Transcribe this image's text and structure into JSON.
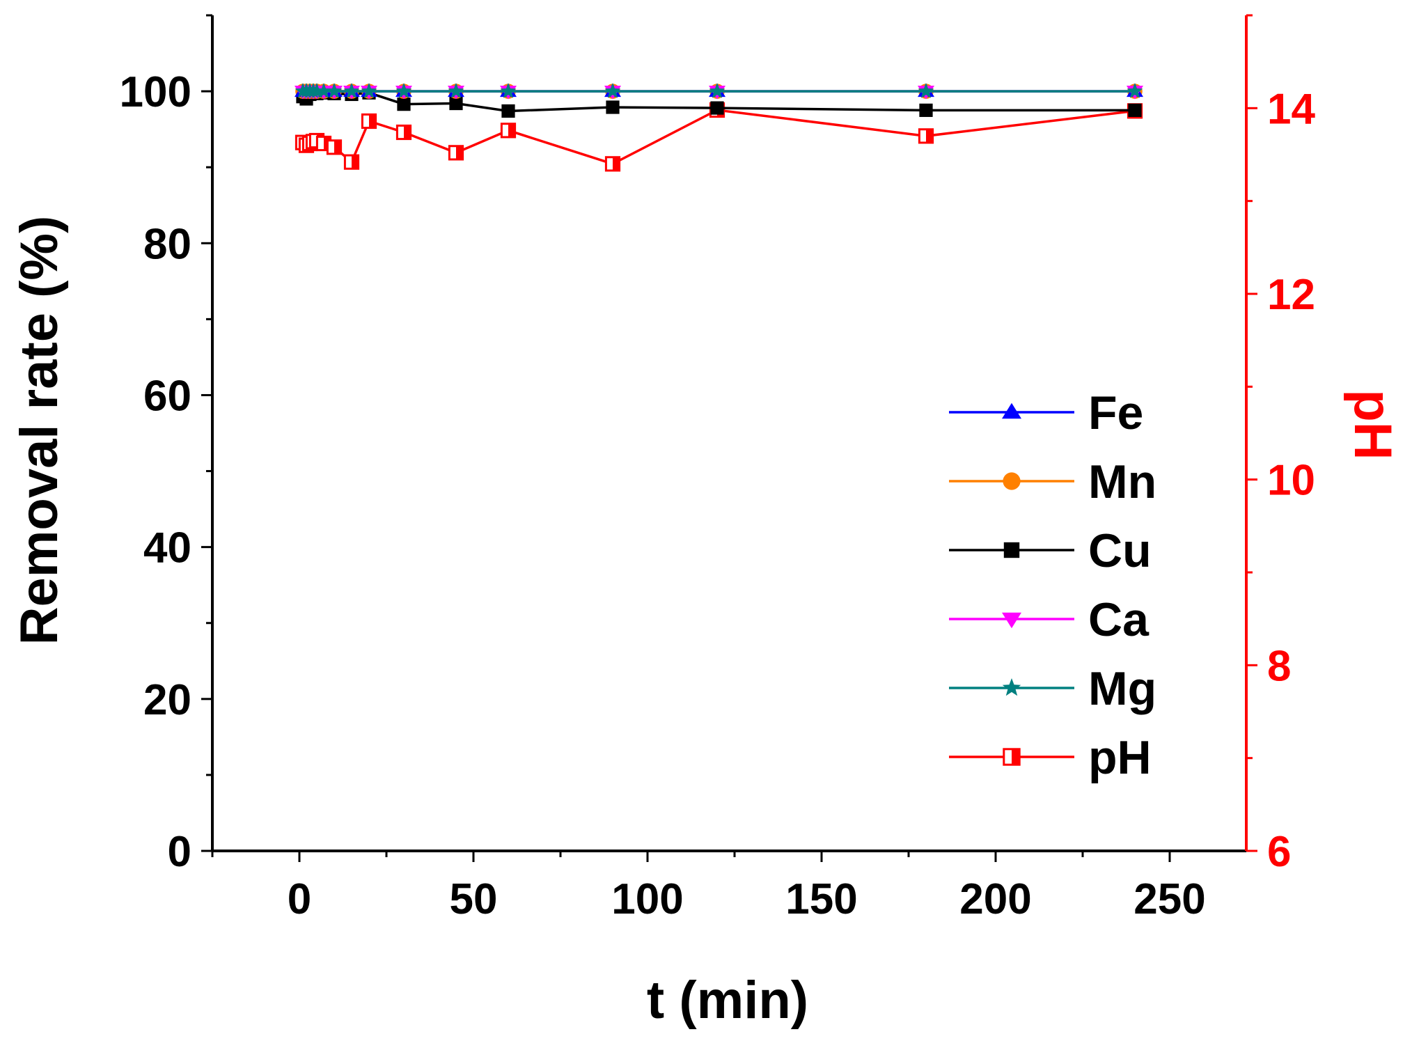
{
  "chart_data": {
    "type": "line",
    "title": "",
    "xlabel": "t (min)",
    "ylabel": "Removal rate (%)",
    "y2label": "pH",
    "xlim": [
      -25,
      272
    ],
    "ylim": [
      0,
      110
    ],
    "y2lim": [
      6,
      15
    ],
    "xticks": [
      0,
      50,
      100,
      150,
      200,
      250
    ],
    "yticks": [
      0,
      20,
      40,
      60,
      80,
      100
    ],
    "y2ticks": [
      6,
      8,
      10,
      12,
      14
    ],
    "legend_position": "center-right",
    "grid": false,
    "colors": {
      "axis": "#000000",
      "axis_right": "#ff0000"
    },
    "series": [
      {
        "name": "Fe",
        "axis": "left",
        "color": "#0000ff",
        "marker": "triangle-up",
        "fill": "solid",
        "x": [
          1,
          2,
          3,
          4,
          5,
          7,
          10,
          15,
          20,
          30,
          45,
          60,
          90,
          120,
          180,
          240
        ],
        "values": [
          100,
          100,
          100,
          100,
          100,
          100,
          100,
          100,
          100,
          100,
          100,
          100,
          100,
          100,
          100,
          100
        ]
      },
      {
        "name": "Mn",
        "axis": "left",
        "color": "#ff8000",
        "marker": "circle",
        "fill": "solid",
        "x": [
          1,
          2,
          3,
          4,
          5,
          7,
          10,
          15,
          20,
          30,
          45,
          60,
          90,
          120,
          180,
          240
        ],
        "values": [
          100,
          100,
          100,
          100,
          100,
          100,
          100,
          100,
          100,
          100,
          100,
          100,
          100,
          100,
          100,
          100
        ]
      },
      {
        "name": "Cu",
        "axis": "left",
        "color": "#000000",
        "marker": "square",
        "fill": "solid",
        "x": [
          1,
          2,
          3,
          4,
          5,
          7,
          10,
          15,
          20,
          30,
          45,
          60,
          90,
          120,
          180,
          240
        ],
        "values": [
          99.3,
          99,
          99.6,
          99.8,
          99.7,
          99.8,
          99.7,
          99.6,
          99.8,
          98.3,
          98.4,
          97.4,
          97.9,
          97.8,
          97.5,
          97.5
        ]
      },
      {
        "name": "Ca",
        "axis": "left",
        "color": "#ff00ff",
        "marker": "triangle-down",
        "fill": "solid",
        "x": [
          1,
          2,
          3,
          4,
          5,
          7,
          10,
          15,
          20,
          30,
          45,
          60,
          90,
          120,
          180,
          240
        ],
        "values": [
          100,
          100,
          100,
          100,
          100,
          100,
          100,
          100,
          100,
          100,
          100,
          100,
          100,
          100,
          100,
          100
        ]
      },
      {
        "name": "Mg",
        "axis": "left",
        "color": "#008080",
        "marker": "star",
        "fill": "solid",
        "x": [
          1,
          2,
          3,
          4,
          5,
          7,
          10,
          15,
          20,
          30,
          45,
          60,
          90,
          120,
          180,
          240
        ],
        "values": [
          100,
          100,
          100,
          100,
          100,
          100,
          100,
          100,
          100,
          100,
          100,
          100,
          100,
          100,
          100,
          100
        ]
      },
      {
        "name": "pH",
        "axis": "right",
        "color": "#ff0000",
        "marker": "square",
        "fill": "half",
        "x": [
          1,
          2,
          3,
          4,
          5,
          7,
          10,
          15,
          20,
          30,
          45,
          60,
          90,
          120,
          180,
          240
        ],
        "values": [
          13.63,
          13.6,
          13.62,
          13.64,
          13.65,
          13.62,
          13.58,
          13.42,
          13.86,
          13.74,
          13.52,
          13.76,
          13.4,
          13.98,
          13.7,
          13.97
        ]
      }
    ]
  }
}
